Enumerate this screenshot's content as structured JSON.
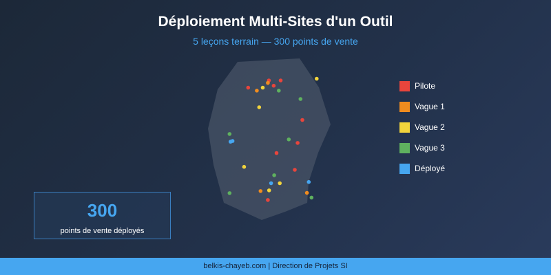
{
  "title": "Déploiement Multi-Sites d'un Outil",
  "subtitle": "5 leçons terrain — 300 points de vente",
  "legend": [
    {
      "label": "Pilote",
      "color": "#e8453c"
    },
    {
      "label": "Vague 1",
      "color": "#f08c1e"
    },
    {
      "label": "Vague 2",
      "color": "#f2d43c"
    },
    {
      "label": "Vague 3",
      "color": "#5fb15f"
    },
    {
      "label": "Déployé",
      "color": "#46a6f0"
    }
  ],
  "stat": {
    "value": "300",
    "label": "points de vente déployés"
  },
  "footer": "belkis-chayeb.com | Direction de Projets SI",
  "colors": {
    "region_fill": "#4a5568",
    "background": "#1f2d41",
    "accent": "#46a6f0"
  },
  "points": [
    {
      "phase": "Pilote",
      "lon": 2.02,
      "lat": 49.32
    },
    {
      "phase": "Pilote",
      "lon": 2.97,
      "lat": 49.32
    },
    {
      "phase": "Pilote",
      "lon": 0.35,
      "lat": 48.79
    },
    {
      "phase": "Pilote",
      "lon": 2.41,
      "lat": 48.93
    },
    {
      "phase": "Pilote",
      "lon": 4.72,
      "lat": 46.4
    },
    {
      "phase": "Pilote",
      "lon": 4.34,
      "lat": 44.7
    },
    {
      "phase": "Pilote",
      "lon": 2.64,
      "lat": 43.95
    },
    {
      "phase": "Pilote",
      "lon": 4.11,
      "lat": 42.71
    },
    {
      "phase": "Pilote",
      "lon": 1.94,
      "lat": 40.48
    },
    {
      "phase": "Vague 1",
      "lon": 1.94,
      "lat": 49.14
    },
    {
      "phase": "Vague 1",
      "lon": 1.05,
      "lat": 48.57
    },
    {
      "phase": "Vague 1",
      "lon": 1.35,
      "lat": 41.14
    },
    {
      "phase": "Vague 1",
      "lon": 5.09,
      "lat": 41.01
    },
    {
      "phase": "Vague 2",
      "lon": 5.88,
      "lat": 49.45
    },
    {
      "phase": "Vague 2",
      "lon": 1.53,
      "lat": 48.79
    },
    {
      "phase": "Vague 2",
      "lon": 1.24,
      "lat": 47.34
    },
    {
      "phase": "Vague 2",
      "lon": 0.02,
      "lat": 42.93
    },
    {
      "phase": "Vague 2",
      "lon": 2.9,
      "lat": 41.72
    },
    {
      "phase": "Vague 2",
      "lon": 2.04,
      "lat": 41.19
    },
    {
      "phase": "Vague 3",
      "lon": 2.82,
      "lat": 48.57
    },
    {
      "phase": "Vague 3",
      "lon": 4.57,
      "lat": 47.95
    },
    {
      "phase": "Vague 3",
      "lon": -1.15,
      "lat": 45.36
    },
    {
      "phase": "Vague 3",
      "lon": 3.63,
      "lat": 44.96
    },
    {
      "phase": "Vague 3",
      "lon": 2.45,
      "lat": 42.31
    },
    {
      "phase": "Vague 3",
      "lon": -1.15,
      "lat": 40.99
    },
    {
      "phase": "Vague 3",
      "lon": 5.46,
      "lat": 40.66
    },
    {
      "phase": "Déployé",
      "lon": -1.07,
      "lat": 44.79
    },
    {
      "phase": "Déployé",
      "lon": -0.91,
      "lat": 44.84
    },
    {
      "phase": "Déployé",
      "lon": 2.2,
      "lat": 41.72
    },
    {
      "phase": "Déployé",
      "lon": 5.24,
      "lat": 41.81
    }
  ]
}
